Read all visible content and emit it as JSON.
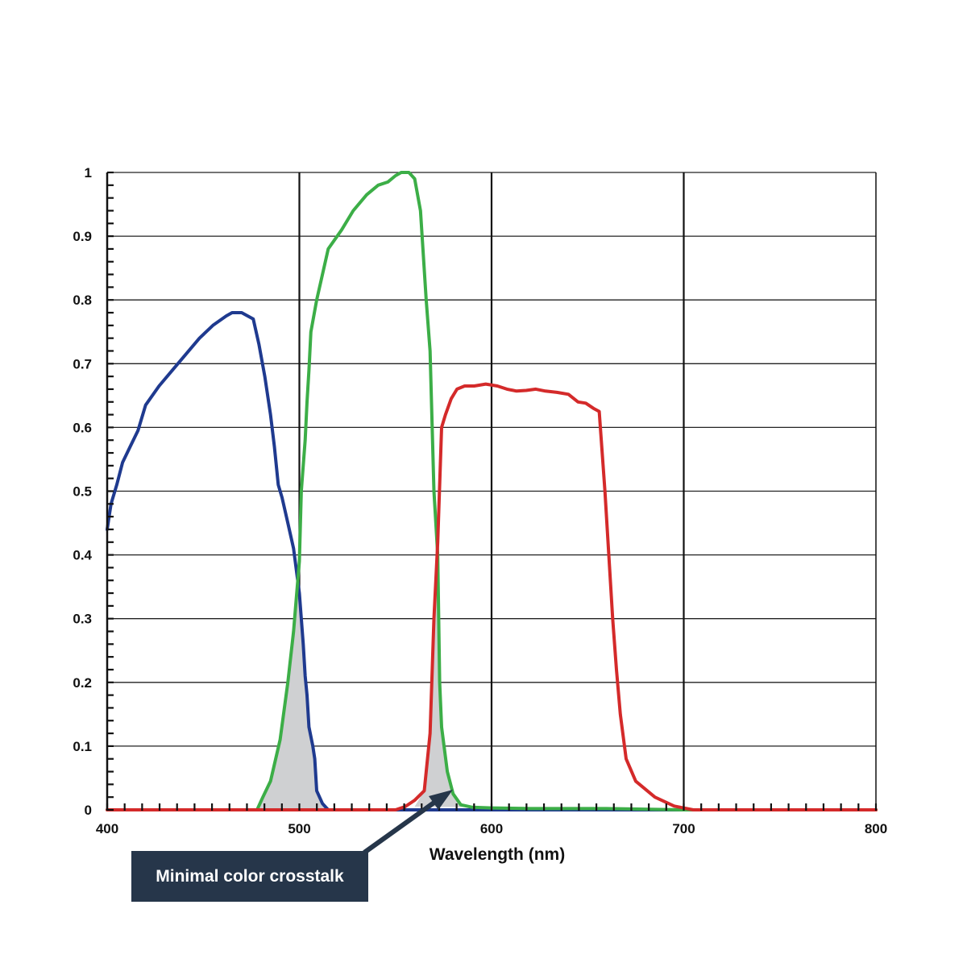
{
  "chart_data": {
    "type": "line",
    "xlabel": "Wavelength (nm)",
    "ylabel": "",
    "xlim": [
      400,
      800
    ],
    "ylim": [
      0,
      1
    ],
    "x_ticks": [
      "400",
      "500",
      "600",
      "700",
      "800"
    ],
    "y_ticks": [
      "0",
      "0.1",
      "0.2",
      "0.3",
      "0.4",
      "0.5",
      "0.6",
      "0.7",
      "0.8",
      "0.9",
      "1"
    ],
    "grid": true,
    "legend": "none",
    "colors": {
      "blue": "#1f3a8f",
      "green": "#3cae47",
      "red": "#d42a2a",
      "overlap": "#cfd0d2"
    },
    "series": [
      {
        "color": "blue",
        "points": [
          [
            400,
            0.44
          ],
          [
            402,
            0.48
          ],
          [
            405,
            0.51
          ],
          [
            408,
            0.545
          ],
          [
            412,
            0.57
          ],
          [
            416,
            0.595
          ],
          [
            420,
            0.635
          ],
          [
            427,
            0.665
          ],
          [
            434,
            0.69
          ],
          [
            441,
            0.715
          ],
          [
            448,
            0.74
          ],
          [
            455,
            0.76
          ],
          [
            462,
            0.775
          ],
          [
            465,
            0.78
          ],
          [
            470,
            0.78
          ],
          [
            476,
            0.77
          ],
          [
            479,
            0.73
          ],
          [
            482,
            0.68
          ],
          [
            485,
            0.62
          ],
          [
            487,
            0.57
          ],
          [
            489,
            0.51
          ],
          [
            491,
            0.49
          ],
          [
            494,
            0.45
          ],
          [
            497,
            0.41
          ],
          [
            500,
            0.34
          ],
          [
            502,
            0.26
          ],
          [
            503,
            0.21
          ],
          [
            504,
            0.18
          ],
          [
            505,
            0.13
          ],
          [
            507,
            0.1
          ],
          [
            508,
            0.08
          ],
          [
            509,
            0.03
          ],
          [
            512,
            0.01
          ],
          [
            515,
            0.0
          ],
          [
            600,
            0.0
          ],
          [
            800,
            0.0
          ]
        ]
      },
      {
        "color": "green",
        "points": [
          [
            400,
            0.0
          ],
          [
            478,
            0.0
          ],
          [
            481,
            0.02
          ],
          [
            485,
            0.045
          ],
          [
            490,
            0.11
          ],
          [
            494,
            0.2
          ],
          [
            497,
            0.28
          ],
          [
            500,
            0.39
          ],
          [
            501,
            0.5
          ],
          [
            503,
            0.58
          ],
          [
            504,
            0.64
          ],
          [
            505,
            0.69
          ],
          [
            506,
            0.75
          ],
          [
            509,
            0.8
          ],
          [
            515,
            0.88
          ],
          [
            522,
            0.91
          ],
          [
            528,
            0.94
          ],
          [
            535,
            0.965
          ],
          [
            541,
            0.98
          ],
          [
            546,
            0.985
          ],
          [
            550,
            0.995
          ],
          [
            553,
            1.0
          ],
          [
            557,
            1.0
          ],
          [
            560,
            0.99
          ],
          [
            563,
            0.94
          ],
          [
            566,
            0.8
          ],
          [
            568,
            0.72
          ],
          [
            570,
            0.5
          ],
          [
            572,
            0.4
          ],
          [
            573,
            0.2
          ],
          [
            574,
            0.13
          ],
          [
            577,
            0.06
          ],
          [
            580,
            0.025
          ],
          [
            584,
            0.008
          ],
          [
            590,
            0.004
          ],
          [
            600,
            0.003
          ],
          [
            620,
            0.002
          ],
          [
            660,
            0.002
          ],
          [
            700,
            0.0
          ],
          [
            800,
            0.0
          ]
        ]
      },
      {
        "color": "red",
        "points": [
          [
            400,
            0.0
          ],
          [
            550,
            0.0
          ],
          [
            555,
            0.005
          ],
          [
            560,
            0.015
          ],
          [
            565,
            0.03
          ],
          [
            568,
            0.12
          ],
          [
            570,
            0.3
          ],
          [
            572,
            0.42
          ],
          [
            574,
            0.6
          ],
          [
            576,
            0.62
          ],
          [
            579,
            0.645
          ],
          [
            582,
            0.66
          ],
          [
            586,
            0.665
          ],
          [
            591,
            0.665
          ],
          [
            597,
            0.668
          ],
          [
            603,
            0.665
          ],
          [
            608,
            0.66
          ],
          [
            613,
            0.657
          ],
          [
            618,
            0.658
          ],
          [
            623,
            0.66
          ],
          [
            628,
            0.657
          ],
          [
            634,
            0.655
          ],
          [
            640,
            0.652
          ],
          [
            645,
            0.64
          ],
          [
            649,
            0.638
          ],
          [
            653,
            0.63
          ],
          [
            656,
            0.625
          ],
          [
            659,
            0.5
          ],
          [
            661,
            0.4
          ],
          [
            663,
            0.3
          ],
          [
            665,
            0.22
          ],
          [
            667,
            0.15
          ],
          [
            670,
            0.08
          ],
          [
            675,
            0.045
          ],
          [
            685,
            0.02
          ],
          [
            695,
            0.006
          ],
          [
            705,
            0.0
          ],
          [
            800,
            0.0
          ]
        ]
      }
    ],
    "overlap_regions": [
      {
        "points": [
          [
            478,
            0.0
          ],
          [
            481,
            0.02
          ],
          [
            485,
            0.045
          ],
          [
            490,
            0.11
          ],
          [
            494,
            0.2
          ],
          [
            497,
            0.28
          ],
          [
            499,
            0.33
          ],
          [
            500,
            0.34
          ],
          [
            502,
            0.26
          ],
          [
            503,
            0.21
          ],
          [
            504,
            0.18
          ],
          [
            505,
            0.13
          ],
          [
            507,
            0.1
          ],
          [
            508,
            0.08
          ],
          [
            509,
            0.03
          ],
          [
            512,
            0.01
          ],
          [
            515,
            0.0
          ]
        ]
      },
      {
        "points": [
          [
            560,
            0.005
          ],
          [
            565,
            0.03
          ],
          [
            568,
            0.12
          ],
          [
            570,
            0.3
          ],
          [
            571,
            0.39
          ],
          [
            572,
            0.4
          ],
          [
            573,
            0.2
          ],
          [
            574,
            0.13
          ],
          [
            577,
            0.06
          ],
          [
            580,
            0.025
          ],
          [
            584,
            0.008
          ],
          [
            590,
            0.004
          ]
        ]
      }
    ]
  },
  "annotation": {
    "label": "Minimal color crosstalk"
  }
}
